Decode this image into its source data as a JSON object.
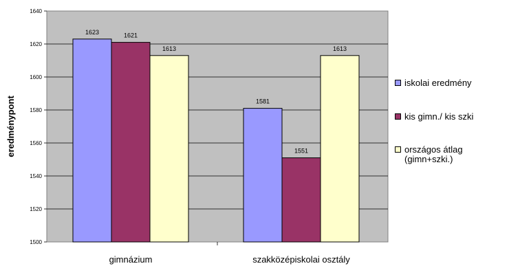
{
  "chart_data": {
    "type": "bar",
    "title": "",
    "xlabel": "",
    "ylabel": "eredménypont",
    "ylim": [
      1500,
      1640
    ],
    "ytick_step": 20,
    "grid": true,
    "legend_position": "right",
    "categories": [
      "gimnázium",
      "szakközépiskolai osztály"
    ],
    "series": [
      {
        "name": "iskolai eredmény",
        "values": [
          1623,
          1581
        ],
        "color": "#9999ff"
      },
      {
        "name": "kis gimn./ kis szki",
        "values": [
          1621,
          1551
        ],
        "color": "#993366"
      },
      {
        "name": "országos átlag\n(gimn+szki.)",
        "values": [
          1613,
          1613
        ],
        "color": "#ffffcc"
      }
    ],
    "plot_background": "#c0c0c0"
  }
}
